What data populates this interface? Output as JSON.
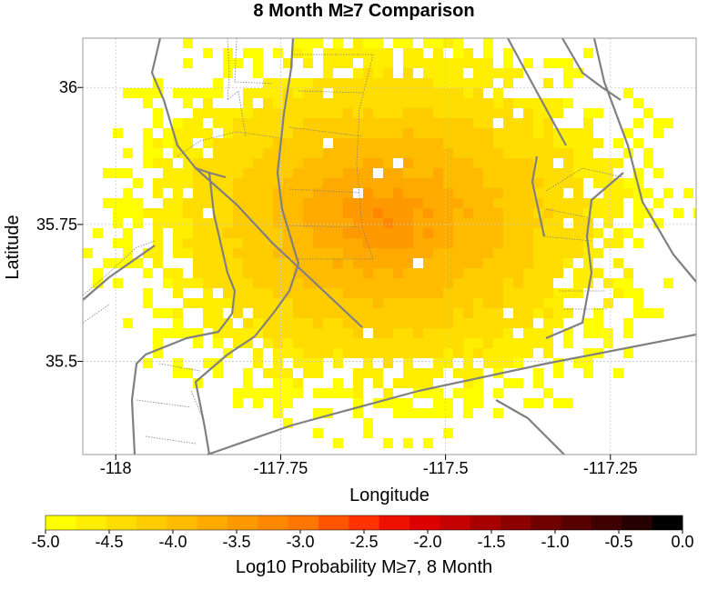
{
  "chart_data": {
    "type": "heatmap",
    "title": "8 Month M≥7 Comparison",
    "xlabel": "Longitude",
    "ylabel": "Latitude",
    "xlim": [
      -118.05,
      -117.12
    ],
    "ylim": [
      35.33,
      36.09
    ],
    "x_ticks": [
      {
        "value": -118,
        "label": "-118"
      },
      {
        "value": -117.75,
        "label": "-117.75"
      },
      {
        "value": -117.5,
        "label": "-117.5"
      },
      {
        "value": -117.25,
        "label": "-117.25"
      }
    ],
    "y_ticks": [
      {
        "value": 36,
        "label": "36"
      },
      {
        "value": 35.75,
        "label": "35.75"
      },
      {
        "value": 35.5,
        "label": "35.5"
      }
    ],
    "grid": true,
    "center": {
      "lon": -117.59,
      "lat": 35.76
    },
    "peak_log10_probability": -3.2,
    "colorbar": {
      "label": "Log10 Probability M≥7, 8 Month",
      "min": -5.0,
      "max": 0.0,
      "ticks": [
        {
          "value": -5.0,
          "label": "-5.0"
        },
        {
          "value": -4.5,
          "label": "-4.5"
        },
        {
          "value": -4.0,
          "label": "-4.0"
        },
        {
          "value": -3.5,
          "label": "-3.5"
        },
        {
          "value": -3.0,
          "label": "-3.0"
        },
        {
          "value": -2.5,
          "label": "-2.5"
        },
        {
          "value": -2.0,
          "label": "-2.0"
        },
        {
          "value": -1.5,
          "label": "-1.5"
        },
        {
          "value": -1.0,
          "label": "-1.0"
        },
        {
          "value": -0.5,
          "label": "-0.5"
        },
        {
          "value": 0.0,
          "label": "0.0"
        }
      ],
      "colors": [
        "#ffff00",
        "#ffee00",
        "#ffdd00",
        "#ffcc00",
        "#ffbb00",
        "#ffaa00",
        "#ff9900",
        "#ff8800",
        "#ff7700",
        "#ff5500",
        "#ff3300",
        "#ee1100",
        "#dd0000",
        "#c40000",
        "#a80000",
        "#8c0000",
        "#700000",
        "#560000",
        "#3e0000",
        "#260000",
        "#000000"
      ]
    },
    "fault_color": "#808080"
  }
}
